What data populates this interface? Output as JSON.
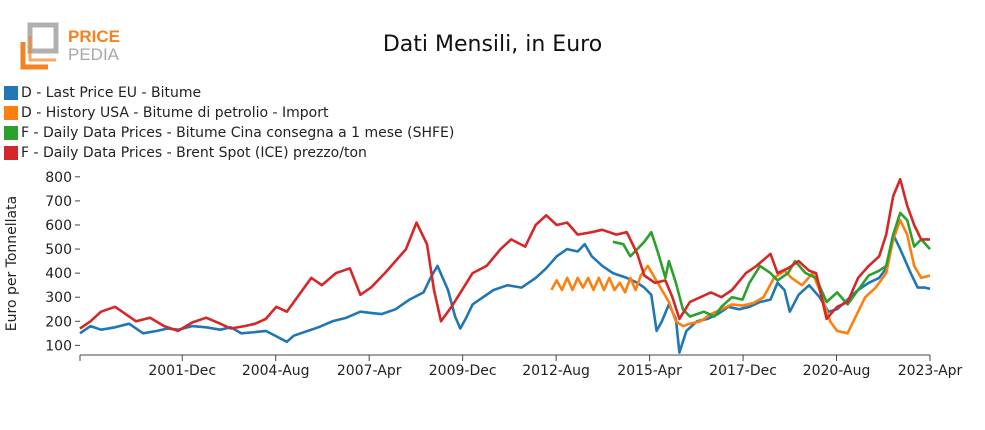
{
  "logo": {
    "text_top": "PRICE",
    "text_bottom": "PEDIA"
  },
  "chart_data": {
    "type": "line",
    "title": "Dati Mensili, in Euro",
    "ylabel": "Euro per Tonnellata",
    "xlabel": "",
    "ylim": [
      60,
      820
    ],
    "y_ticks": [
      100,
      200,
      300,
      400,
      500,
      600,
      700,
      800
    ],
    "x_tick_labels": [
      "2001-Dec",
      "2004-Aug",
      "2007-Apr",
      "2009-Dec",
      "2012-Aug",
      "2015-Apr",
      "2017-Dec",
      "2020-Aug",
      "2023-Apr"
    ],
    "x_ticks": [
      2001.917,
      2004.583,
      2007.25,
      2009.917,
      2012.583,
      2015.25,
      2017.917,
      2020.583,
      2023.25
    ],
    "x_range": [
      1999.0,
      2023.25
    ],
    "legend_position": "top-left",
    "series": [
      {
        "name": "D - Last Price EU - Bitume",
        "color": "#1f77b4",
        "points": [
          [
            1999.0,
            150
          ],
          [
            1999.3,
            180
          ],
          [
            1999.6,
            165
          ],
          [
            2000.0,
            175
          ],
          [
            2000.4,
            190
          ],
          [
            2000.8,
            150
          ],
          [
            2001.2,
            160
          ],
          [
            2001.5,
            170
          ],
          [
            2001.8,
            165
          ],
          [
            2002.2,
            180
          ],
          [
            2002.6,
            175
          ],
          [
            2003.0,
            165
          ],
          [
            2003.3,
            175
          ],
          [
            2003.6,
            150
          ],
          [
            2004.0,
            155
          ],
          [
            2004.3,
            160
          ],
          [
            2004.7,
            130
          ],
          [
            2004.9,
            115
          ],
          [
            2005.1,
            140
          ],
          [
            2005.5,
            160
          ],
          [
            2005.8,
            175
          ],
          [
            2006.2,
            200
          ],
          [
            2006.6,
            215
          ],
          [
            2007.0,
            240
          ],
          [
            2007.3,
            235
          ],
          [
            2007.6,
            230
          ],
          [
            2008.0,
            250
          ],
          [
            2008.4,
            290
          ],
          [
            2008.8,
            320
          ],
          [
            2009.0,
            380
          ],
          [
            2009.2,
            430
          ],
          [
            2009.5,
            330
          ],
          [
            2009.7,
            220
          ],
          [
            2009.85,
            170
          ],
          [
            2010.0,
            210
          ],
          [
            2010.2,
            270
          ],
          [
            2010.4,
            290
          ],
          [
            2010.8,
            330
          ],
          [
            2011.2,
            350
          ],
          [
            2011.6,
            340
          ],
          [
            2012.0,
            380
          ],
          [
            2012.3,
            420
          ],
          [
            2012.6,
            470
          ],
          [
            2012.9,
            500
          ],
          [
            2013.2,
            490
          ],
          [
            2013.4,
            520
          ],
          [
            2013.6,
            470
          ],
          [
            2013.9,
            430
          ],
          [
            2014.2,
            400
          ],
          [
            2014.6,
            380
          ],
          [
            2014.9,
            360
          ],
          [
            2015.1,
            340
          ],
          [
            2015.3,
            310
          ],
          [
            2015.45,
            160
          ],
          [
            2015.6,
            200
          ],
          [
            2015.8,
            270
          ],
          [
            2016.0,
            210
          ],
          [
            2016.1,
            70
          ],
          [
            2016.3,
            160
          ],
          [
            2016.6,
            200
          ],
          [
            2016.9,
            210
          ],
          [
            2017.2,
            230
          ],
          [
            2017.5,
            260
          ],
          [
            2017.8,
            250
          ],
          [
            2018.1,
            260
          ],
          [
            2018.4,
            280
          ],
          [
            2018.7,
            290
          ],
          [
            2018.9,
            360
          ],
          [
            2019.1,
            330
          ],
          [
            2019.25,
            240
          ],
          [
            2019.5,
            310
          ],
          [
            2019.8,
            350
          ],
          [
            2020.1,
            300
          ],
          [
            2020.35,
            240
          ],
          [
            2020.6,
            250
          ],
          [
            2020.9,
            290
          ],
          [
            2021.2,
            330
          ],
          [
            2021.5,
            360
          ],
          [
            2021.8,
            380
          ],
          [
            2022.0,
            420
          ],
          [
            2022.2,
            560
          ],
          [
            2022.4,
            500
          ],
          [
            2022.7,
            400
          ],
          [
            2022.9,
            340
          ],
          [
            2023.1,
            340
          ],
          [
            2023.25,
            335
          ]
        ]
      },
      {
        "name": "D - History USA - Bitume di petrolio - Import",
        "color": "#ff7f0e",
        "points": [
          [
            2012.45,
            330
          ],
          [
            2012.6,
            370
          ],
          [
            2012.75,
            330
          ],
          [
            2012.9,
            380
          ],
          [
            2013.05,
            330
          ],
          [
            2013.2,
            380
          ],
          [
            2013.35,
            340
          ],
          [
            2013.5,
            380
          ],
          [
            2013.65,
            330
          ],
          [
            2013.8,
            380
          ],
          [
            2013.95,
            330
          ],
          [
            2014.1,
            380
          ],
          [
            2014.25,
            330
          ],
          [
            2014.4,
            360
          ],
          [
            2014.55,
            320
          ],
          [
            2014.7,
            380
          ],
          [
            2014.85,
            330
          ],
          [
            2015.0,
            390
          ],
          [
            2015.2,
            430
          ],
          [
            2015.4,
            380
          ],
          [
            2015.6,
            330
          ],
          [
            2015.8,
            280
          ],
          [
            2016.0,
            200
          ],
          [
            2016.2,
            180
          ],
          [
            2016.4,
            190
          ],
          [
            2016.7,
            200
          ],
          [
            2017.0,
            230
          ],
          [
            2017.3,
            250
          ],
          [
            2017.6,
            270
          ],
          [
            2017.9,
            265
          ],
          [
            2018.2,
            275
          ],
          [
            2018.5,
            300
          ],
          [
            2018.8,
            380
          ],
          [
            2019.1,
            410
          ],
          [
            2019.3,
            380
          ],
          [
            2019.6,
            350
          ],
          [
            2019.9,
            400
          ],
          [
            2020.1,
            330
          ],
          [
            2020.4,
            200
          ],
          [
            2020.6,
            160
          ],
          [
            2020.9,
            150
          ],
          [
            2021.1,
            210
          ],
          [
            2021.4,
            300
          ],
          [
            2021.7,
            340
          ],
          [
            2022.0,
            400
          ],
          [
            2022.2,
            540
          ],
          [
            2022.4,
            620
          ],
          [
            2022.6,
            560
          ],
          [
            2022.8,
            430
          ],
          [
            2023.0,
            380
          ],
          [
            2023.25,
            390
          ]
        ]
      },
      {
        "name": "F - Daily Data Prices - Bitume Cina consegna a 1 mese (SHFE)",
        "color": "#2ca02c",
        "points": [
          [
            2014.2,
            530
          ],
          [
            2014.5,
            520
          ],
          [
            2014.7,
            470
          ],
          [
            2014.9,
            500
          ],
          [
            2015.1,
            530
          ],
          [
            2015.3,
            570
          ],
          [
            2015.5,
            480
          ],
          [
            2015.7,
            380
          ],
          [
            2015.8,
            450
          ],
          [
            2016.0,
            360
          ],
          [
            2016.2,
            250
          ],
          [
            2016.4,
            220
          ],
          [
            2016.6,
            230
          ],
          [
            2016.8,
            240
          ],
          [
            2017.1,
            220
          ],
          [
            2017.3,
            260
          ],
          [
            2017.6,
            300
          ],
          [
            2017.9,
            290
          ],
          [
            2018.1,
            360
          ],
          [
            2018.4,
            430
          ],
          [
            2018.7,
            400
          ],
          [
            2018.9,
            370
          ],
          [
            2019.2,
            400
          ],
          [
            2019.4,
            450
          ],
          [
            2019.7,
            400
          ],
          [
            2020.0,
            380
          ],
          [
            2020.3,
            280
          ],
          [
            2020.6,
            320
          ],
          [
            2020.9,
            270
          ],
          [
            2021.2,
            330
          ],
          [
            2021.5,
            390
          ],
          [
            2021.8,
            410
          ],
          [
            2022.0,
            430
          ],
          [
            2022.2,
            560
          ],
          [
            2022.4,
            650
          ],
          [
            2022.6,
            620
          ],
          [
            2022.8,
            510
          ],
          [
            2023.0,
            540
          ],
          [
            2023.25,
            500
          ]
        ]
      },
      {
        "name": "F - Daily Data Prices - Brent Spot (ICE) prezzo/ton",
        "color": "#d62728",
        "points": [
          [
            1999.0,
            170
          ],
          [
            1999.3,
            200
          ],
          [
            1999.6,
            240
          ],
          [
            2000.0,
            260
          ],
          [
            2000.3,
            230
          ],
          [
            2000.6,
            200
          ],
          [
            2001.0,
            215
          ],
          [
            2001.4,
            180
          ],
          [
            2001.8,
            160
          ],
          [
            2002.2,
            195
          ],
          [
            2002.6,
            215
          ],
          [
            2003.0,
            190
          ],
          [
            2003.3,
            170
          ],
          [
            2003.7,
            180
          ],
          [
            2004.0,
            190
          ],
          [
            2004.3,
            210
          ],
          [
            2004.6,
            260
          ],
          [
            2004.9,
            240
          ],
          [
            2005.2,
            300
          ],
          [
            2005.6,
            380
          ],
          [
            2005.9,
            350
          ],
          [
            2006.3,
            400
          ],
          [
            2006.7,
            420
          ],
          [
            2007.0,
            310
          ],
          [
            2007.3,
            340
          ],
          [
            2007.7,
            400
          ],
          [
            2008.0,
            450
          ],
          [
            2008.3,
            500
          ],
          [
            2008.6,
            610
          ],
          [
            2008.9,
            520
          ],
          [
            2009.1,
            330
          ],
          [
            2009.3,
            200
          ],
          [
            2009.6,
            260
          ],
          [
            2009.9,
            330
          ],
          [
            2010.2,
            400
          ],
          [
            2010.6,
            430
          ],
          [
            2011.0,
            500
          ],
          [
            2011.3,
            540
          ],
          [
            2011.7,
            510
          ],
          [
            2012.0,
            600
          ],
          [
            2012.3,
            640
          ],
          [
            2012.6,
            600
          ],
          [
            2012.9,
            610
          ],
          [
            2013.2,
            560
          ],
          [
            2013.6,
            570
          ],
          [
            2013.9,
            580
          ],
          [
            2014.3,
            560
          ],
          [
            2014.6,
            570
          ],
          [
            2014.9,
            480
          ],
          [
            2015.1,
            390
          ],
          [
            2015.4,
            360
          ],
          [
            2015.7,
            370
          ],
          [
            2015.9,
            300
          ],
          [
            2016.1,
            210
          ],
          [
            2016.4,
            280
          ],
          [
            2016.7,
            300
          ],
          [
            2017.0,
            320
          ],
          [
            2017.3,
            300
          ],
          [
            2017.6,
            330
          ],
          [
            2018.0,
            400
          ],
          [
            2018.3,
            430
          ],
          [
            2018.7,
            480
          ],
          [
            2018.9,
            400
          ],
          [
            2019.2,
            420
          ],
          [
            2019.5,
            450
          ],
          [
            2019.8,
            410
          ],
          [
            2020.0,
            400
          ],
          [
            2020.3,
            210
          ],
          [
            2020.6,
            260
          ],
          [
            2020.9,
            280
          ],
          [
            2021.2,
            380
          ],
          [
            2021.5,
            430
          ],
          [
            2021.8,
            470
          ],
          [
            2022.0,
            560
          ],
          [
            2022.2,
            720
          ],
          [
            2022.4,
            790
          ],
          [
            2022.6,
            680
          ],
          [
            2022.8,
            600
          ],
          [
            2023.0,
            540
          ],
          [
            2023.25,
            540
          ]
        ]
      }
    ]
  }
}
